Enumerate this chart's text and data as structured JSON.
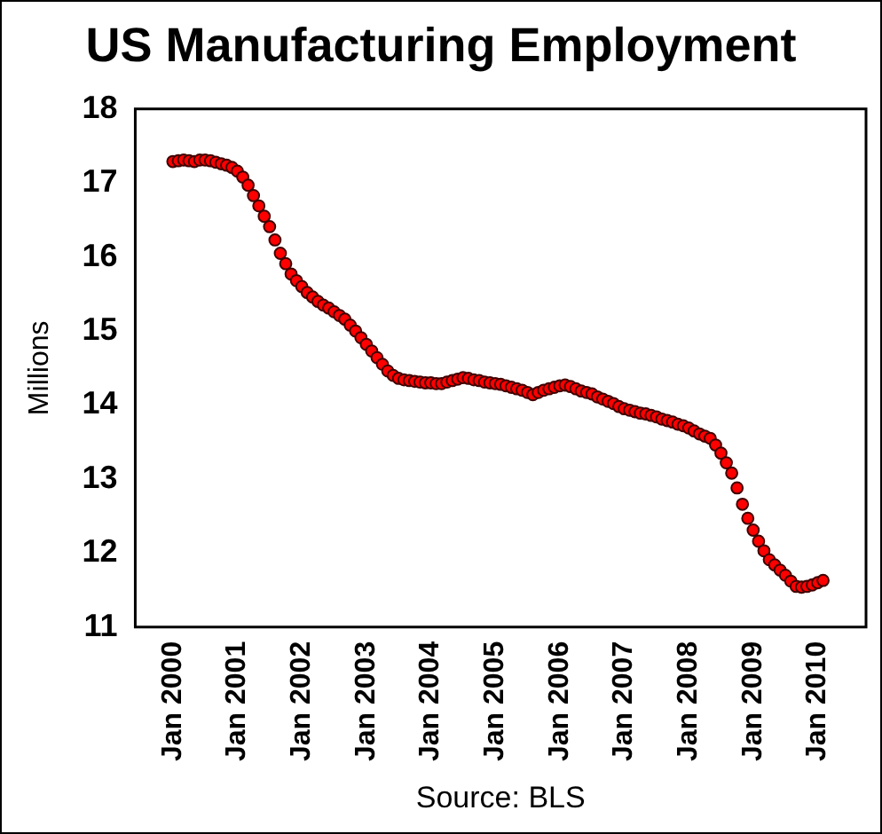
{
  "chart_data": {
    "type": "scatter",
    "title": "US Manufacturing Employment",
    "ylabel": "Millions",
    "annotations": [
      "Source: BLS"
    ],
    "marker": "circle",
    "color": "#ff0000",
    "grid": false,
    "legend": false,
    "xlim": [
      "1999-06",
      "2010-10"
    ],
    "xticks": [
      {
        "value": "2000-01",
        "label": "Jan 2000"
      },
      {
        "value": "2001-01",
        "label": "Jan 2001"
      },
      {
        "value": "2002-01",
        "label": "Jan 2002"
      },
      {
        "value": "2003-01",
        "label": "Jan 2003"
      },
      {
        "value": "2004-01",
        "label": "Jan 2004"
      },
      {
        "value": "2005-01",
        "label": "Jan 2005"
      },
      {
        "value": "2006-01",
        "label": "Jan 2006"
      },
      {
        "value": "2007-01",
        "label": "Jan 2007"
      },
      {
        "value": "2008-01",
        "label": "Jan 2008"
      },
      {
        "value": "2009-01",
        "label": "Jan 2009"
      },
      {
        "value": "2010-01",
        "label": "Jan 2010"
      }
    ],
    "ylim": [
      11,
      18
    ],
    "yticks": [
      11,
      12,
      13,
      14,
      15,
      16,
      17,
      18
    ],
    "x": [
      "2000-01",
      "2000-02",
      "2000-03",
      "2000-04",
      "2000-05",
      "2000-06",
      "2000-07",
      "2000-08",
      "2000-09",
      "2000-10",
      "2000-11",
      "2000-12",
      "2001-01",
      "2001-02",
      "2001-03",
      "2001-04",
      "2001-05",
      "2001-06",
      "2001-07",
      "2001-08",
      "2001-09",
      "2001-10",
      "2001-11",
      "2001-12",
      "2002-01",
      "2002-02",
      "2002-03",
      "2002-04",
      "2002-05",
      "2002-06",
      "2002-07",
      "2002-08",
      "2002-09",
      "2002-10",
      "2002-11",
      "2002-12",
      "2003-01",
      "2003-02",
      "2003-03",
      "2003-04",
      "2003-05",
      "2003-06",
      "2003-07",
      "2003-08",
      "2003-09",
      "2003-10",
      "2003-11",
      "2003-12",
      "2004-01",
      "2004-02",
      "2004-03",
      "2004-04",
      "2004-05",
      "2004-06",
      "2004-07",
      "2004-08",
      "2004-09",
      "2004-10",
      "2004-11",
      "2004-12",
      "2005-01",
      "2005-02",
      "2005-03",
      "2005-04",
      "2005-05",
      "2005-06",
      "2005-07",
      "2005-08",
      "2005-09",
      "2005-10",
      "2005-11",
      "2005-12",
      "2006-01",
      "2006-02",
      "2006-03",
      "2006-04",
      "2006-05",
      "2006-06",
      "2006-07",
      "2006-08",
      "2006-09",
      "2006-10",
      "2006-11",
      "2006-12",
      "2007-01",
      "2007-02",
      "2007-03",
      "2007-04",
      "2007-05",
      "2007-06",
      "2007-07",
      "2007-08",
      "2007-09",
      "2007-10",
      "2007-11",
      "2007-12",
      "2008-01",
      "2008-02",
      "2008-03",
      "2008-04",
      "2008-05",
      "2008-06",
      "2008-07",
      "2008-08",
      "2008-09",
      "2008-10",
      "2008-11",
      "2008-12",
      "2009-01",
      "2009-02",
      "2009-03",
      "2009-04",
      "2009-05",
      "2009-06",
      "2009-07",
      "2009-08",
      "2009-09",
      "2009-10",
      "2009-11",
      "2009-12",
      "2010-01",
      "2010-02"
    ],
    "values": [
      17.29,
      17.3,
      17.31,
      17.3,
      17.29,
      17.31,
      17.31,
      17.3,
      17.28,
      17.26,
      17.24,
      17.21,
      17.16,
      17.08,
      16.97,
      16.83,
      16.69,
      16.55,
      16.41,
      16.23,
      16.05,
      15.91,
      15.77,
      15.68,
      15.6,
      15.52,
      15.46,
      15.4,
      15.35,
      15.31,
      15.26,
      15.21,
      15.16,
      15.08,
      15.0,
      14.91,
      14.82,
      14.73,
      14.64,
      14.55,
      14.46,
      14.4,
      14.36,
      14.34,
      14.33,
      14.32,
      14.31,
      14.3,
      14.3,
      14.29,
      14.29,
      14.31,
      14.33,
      14.35,
      14.37,
      14.36,
      14.34,
      14.33,
      14.31,
      14.3,
      14.29,
      14.28,
      14.26,
      14.24,
      14.22,
      14.2,
      14.17,
      14.14,
      14.17,
      14.2,
      14.22,
      14.24,
      14.26,
      14.27,
      14.25,
      14.22,
      14.19,
      14.17,
      14.15,
      14.11,
      14.08,
      14.05,
      14.02,
      13.98,
      13.95,
      13.93,
      13.91,
      13.89,
      13.88,
      13.86,
      13.84,
      13.81,
      13.79,
      13.77,
      13.74,
      13.72,
      13.69,
      13.65,
      13.61,
      13.58,
      13.55,
      13.46,
      13.35,
      13.22,
      13.08,
      12.88,
      12.66,
      12.47,
      12.31,
      12.16,
      12.03,
      11.91,
      11.84,
      11.77,
      11.7,
      11.62,
      11.55,
      11.54,
      11.55,
      11.57,
      11.6,
      11.63
    ]
  }
}
